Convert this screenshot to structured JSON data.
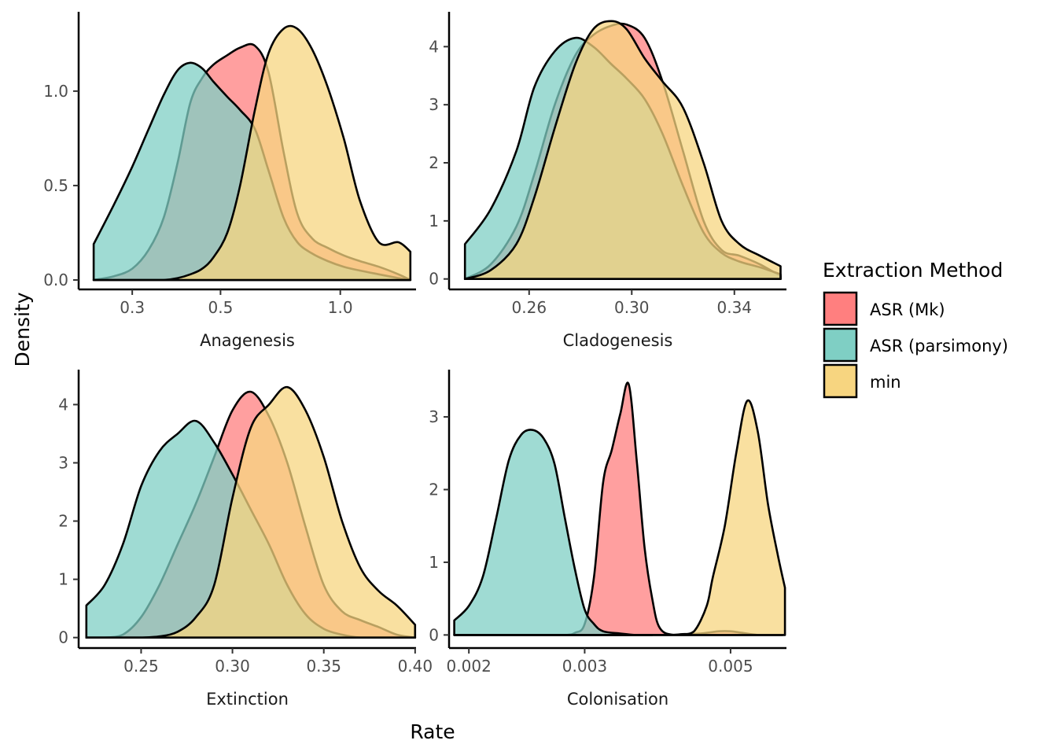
{
  "x_axis_title": "Rate",
  "y_axis_title": "Density",
  "legend": {
    "title": "Extraction Method",
    "entries": [
      {
        "label": "ASR (Mk)",
        "color": "#FF7F7F"
      },
      {
        "label": "ASR (parsimony)",
        "color": "#7FCFC4"
      },
      {
        "label": "min",
        "color": "#F7D580"
      }
    ]
  },
  "chart_data": [
    {
      "type": "area",
      "title": "Anagenesis",
      "x_scale": "log",
      "xlim": [
        0.22,
        1.55
      ],
      "ylim": [
        -0.05,
        1.42
      ],
      "x_ticks": [
        {
          "value": 0.3,
          "label": "0.3"
        },
        {
          "value": 0.5,
          "label": "0.5"
        },
        {
          "value": 1.0,
          "label": "1.0"
        }
      ],
      "y_ticks": [
        {
          "value": 0,
          "label": "0.0"
        },
        {
          "value": 0.5,
          "label": "0.5"
        },
        {
          "value": 1.0,
          "label": "1.0"
        }
      ],
      "series": [
        {
          "name": "ASR (Mk)",
          "color": "#FF7F7F",
          "x": [
            0.24,
            0.27,
            0.3,
            0.33,
            0.36,
            0.39,
            0.42,
            0.45,
            0.48,
            0.52,
            0.56,
            0.61,
            0.66,
            0.72,
            0.78,
            0.85,
            0.93,
            1.02,
            1.12,
            1.25,
            1.4,
            1.5
          ],
          "y": [
            0.0,
            0.02,
            0.06,
            0.16,
            0.33,
            0.62,
            0.94,
            1.07,
            1.14,
            1.19,
            1.23,
            1.24,
            1.1,
            0.68,
            0.35,
            0.22,
            0.17,
            0.13,
            0.1,
            0.07,
            0.03,
            0.0
          ]
        },
        {
          "name": "ASR (parsimony)",
          "color": "#7FCFC4",
          "x": [
            0.24,
            0.27,
            0.3,
            0.33,
            0.36,
            0.39,
            0.42,
            0.45,
            0.48,
            0.52,
            0.56,
            0.61,
            0.66,
            0.72,
            0.78,
            0.85,
            0.93,
            1.02,
            1.12,
            1.25,
            1.4,
            1.5
          ],
          "y": [
            0.19,
            0.4,
            0.6,
            0.8,
            0.98,
            1.11,
            1.15,
            1.12,
            1.05,
            0.97,
            0.9,
            0.8,
            0.58,
            0.33,
            0.2,
            0.14,
            0.1,
            0.07,
            0.05,
            0.03,
            0.01,
            0.0
          ]
        },
        {
          "name": "min",
          "color": "#F7D580",
          "x": [
            0.24,
            0.27,
            0.3,
            0.33,
            0.36,
            0.39,
            0.42,
            0.45,
            0.48,
            0.52,
            0.56,
            0.61,
            0.66,
            0.72,
            0.78,
            0.85,
            0.93,
            1.02,
            1.12,
            1.25,
            1.4,
            1.5
          ],
          "y": [
            0.0,
            0.0,
            0.0,
            0.0,
            0.0,
            0.01,
            0.03,
            0.06,
            0.12,
            0.25,
            0.5,
            0.9,
            1.2,
            1.33,
            1.33,
            1.22,
            1.02,
            0.75,
            0.42,
            0.2,
            0.2,
            0.15
          ]
        }
      ]
    },
    {
      "type": "area",
      "title": "Cladogenesis",
      "x_scale": "linear",
      "xlim": [
        0.2288,
        0.3603
      ],
      "ylim": [
        -0.18,
        4.6
      ],
      "x_ticks": [
        {
          "value": 0.26,
          "label": "0.26"
        },
        {
          "value": 0.3,
          "label": "0.30"
        },
        {
          "value": 0.34,
          "label": "0.34"
        }
      ],
      "y_ticks": [
        {
          "value": 0,
          "label": "0"
        },
        {
          "value": 1,
          "label": "1"
        },
        {
          "value": 2,
          "label": "2"
        },
        {
          "value": 3,
          "label": "3"
        },
        {
          "value": 4,
          "label": "4"
        }
      ],
      "series": [
        {
          "name": "ASR (Mk)",
          "color": "#FF7F7F",
          "x": [
            0.235,
            0.245,
            0.255,
            0.262,
            0.27,
            0.278,
            0.285,
            0.292,
            0.298,
            0.305,
            0.312,
            0.32,
            0.328,
            0.335,
            0.342,
            0.35,
            0.358
          ],
          "y": [
            0.0,
            0.25,
            0.9,
            1.8,
            3.0,
            3.85,
            4.2,
            4.36,
            4.38,
            4.15,
            3.4,
            2.2,
            1.0,
            0.5,
            0.4,
            0.25,
            0.05
          ]
        },
        {
          "name": "ASR (parsimony)",
          "color": "#7FCFC4",
          "x": [
            0.235,
            0.245,
            0.255,
            0.262,
            0.27,
            0.278,
            0.285,
            0.292,
            0.298,
            0.305,
            0.312,
            0.32,
            0.328,
            0.335,
            0.342,
            0.35,
            0.358
          ],
          "y": [
            0.6,
            1.2,
            2.2,
            3.3,
            3.92,
            4.15,
            4.0,
            3.7,
            3.45,
            3.1,
            2.5,
            1.6,
            0.8,
            0.45,
            0.3,
            0.2,
            0.08
          ]
        },
        {
          "name": "min",
          "color": "#F7D580",
          "x": [
            0.235,
            0.245,
            0.255,
            0.262,
            0.27,
            0.278,
            0.285,
            0.292,
            0.298,
            0.305,
            0.312,
            0.32,
            0.328,
            0.335,
            0.342,
            0.35,
            0.358
          ],
          "y": [
            0.0,
            0.15,
            0.6,
            1.4,
            2.6,
            3.7,
            4.3,
            4.44,
            4.3,
            3.8,
            3.4,
            2.95,
            2.0,
            1.0,
            0.6,
            0.4,
            0.22
          ]
        }
      ]
    },
    {
      "type": "area",
      "title": "Extinction",
      "x_scale": "linear",
      "xlim": [
        0.2158,
        0.4005
      ],
      "ylim": [
        -0.18,
        4.6
      ],
      "x_ticks": [
        {
          "value": 0.25,
          "label": "0.25"
        },
        {
          "value": 0.3,
          "label": "0.30"
        },
        {
          "value": 0.35,
          "label": "0.35"
        },
        {
          "value": 0.4,
          "label": "0.40"
        }
      ],
      "y_ticks": [
        {
          "value": 0,
          "label": "0"
        },
        {
          "value": 1,
          "label": "1"
        },
        {
          "value": 2,
          "label": "2"
        },
        {
          "value": 3,
          "label": "3"
        },
        {
          "value": 4,
          "label": "4"
        }
      ],
      "series": [
        {
          "name": "ASR (Mk)",
          "color": "#FF7F7F",
          "x": [
            0.22,
            0.23,
            0.24,
            0.25,
            0.26,
            0.27,
            0.28,
            0.29,
            0.3,
            0.31,
            0.32,
            0.33,
            0.34,
            0.35,
            0.36,
            0.37,
            0.38,
            0.39,
            0.4
          ],
          "y": [
            0.0,
            0.0,
            0.05,
            0.35,
            0.9,
            1.6,
            2.3,
            3.1,
            3.9,
            4.22,
            3.8,
            3.0,
            1.9,
            0.9,
            0.45,
            0.3,
            0.18,
            0.05,
            0.0
          ]
        },
        {
          "name": "ASR (parsimony)",
          "color": "#7FCFC4",
          "x": [
            0.22,
            0.23,
            0.24,
            0.25,
            0.26,
            0.27,
            0.28,
            0.29,
            0.3,
            0.31,
            0.32,
            0.33,
            0.34,
            0.35,
            0.36,
            0.37,
            0.38,
            0.39,
            0.4
          ],
          "y": [
            0.55,
            0.9,
            1.6,
            2.6,
            3.2,
            3.5,
            3.72,
            3.35,
            2.8,
            2.2,
            1.6,
            0.9,
            0.4,
            0.15,
            0.05,
            0.0,
            0.0,
            0.0,
            0.0
          ]
        },
        {
          "name": "min",
          "color": "#F7D580",
          "x": [
            0.22,
            0.23,
            0.24,
            0.25,
            0.26,
            0.27,
            0.28,
            0.29,
            0.3,
            0.31,
            0.32,
            0.33,
            0.34,
            0.35,
            0.36,
            0.37,
            0.38,
            0.39,
            0.4
          ],
          "y": [
            0.0,
            0.0,
            0.0,
            0.0,
            0.02,
            0.1,
            0.35,
            0.9,
            2.4,
            3.6,
            4.0,
            4.3,
            3.9,
            3.1,
            2.0,
            1.2,
            0.8,
            0.55,
            0.22
          ]
        }
      ]
    },
    {
      "type": "area",
      "title": "Colonisation",
      "x_scale": "log",
      "xlim": [
        0.001866,
        0.006081
      ],
      "ylim": [
        -0.18,
        3.65
      ],
      "x_ticks": [
        {
          "value": 0.002,
          "label": "0.002"
        },
        {
          "value": 0.003,
          "label": "0.003"
        },
        {
          "value": 0.005,
          "label": "0.005"
        }
      ],
      "y_ticks": [
        {
          "value": 0,
          "label": "0"
        },
        {
          "value": 1,
          "label": "1"
        },
        {
          "value": 2,
          "label": "2"
        },
        {
          "value": 3,
          "label": "3"
        }
      ],
      "series": [
        {
          "name": "ASR (Mk)",
          "color": "#FF7F7F",
          "x": [
            0.0019,
            0.0025,
            0.0028,
            0.0029,
            0.003,
            0.0031,
            0.0032,
            0.0033,
            0.0034,
            0.0035,
            0.0036,
            0.0037,
            0.0038,
            0.0039,
            0.0041,
            0.0045,
            0.0048,
            0.005,
            0.0052,
            0.0055,
            0.0058,
            0.006
          ],
          "y": [
            0.0,
            0.0,
            0.0,
            0.03,
            0.15,
            0.8,
            2.1,
            2.55,
            3.05,
            3.45,
            2.4,
            1.2,
            0.5,
            0.1,
            0.0,
            0.02,
            0.05,
            0.05,
            0.03,
            0.0,
            0.0,
            0.0
          ]
        },
        {
          "name": "ASR (parsimony)",
          "color": "#7FCFC4",
          "x": [
            0.0019,
            0.002,
            0.0021,
            0.0022,
            0.0023,
            0.0024,
            0.0025,
            0.0026,
            0.0027,
            0.0028,
            0.0029,
            0.003,
            0.0031,
            0.0032,
            0.0034,
            0.0036,
            0.0038
          ],
          "y": [
            0.2,
            0.4,
            0.8,
            1.6,
            2.4,
            2.75,
            2.82,
            2.7,
            2.35,
            1.6,
            0.9,
            0.35,
            0.15,
            0.05,
            0.02,
            0.0,
            0.0
          ]
        },
        {
          "name": "min",
          "color": "#F7D580",
          "x": [
            0.0019,
            0.0025,
            0.0029,
            0.0032,
            0.0035,
            0.004,
            0.0042,
            0.0044,
            0.0046,
            0.0047,
            0.0049,
            0.0051,
            0.0053,
            0.0055,
            0.0057,
            0.0059,
            0.00605
          ],
          "y": [
            0.0,
            0.0,
            0.0,
            0.0,
            0.0,
            0.0,
            0.01,
            0.05,
            0.4,
            0.8,
            1.5,
            2.5,
            3.22,
            2.8,
            1.8,
            1.1,
            0.65
          ]
        }
      ]
    }
  ]
}
